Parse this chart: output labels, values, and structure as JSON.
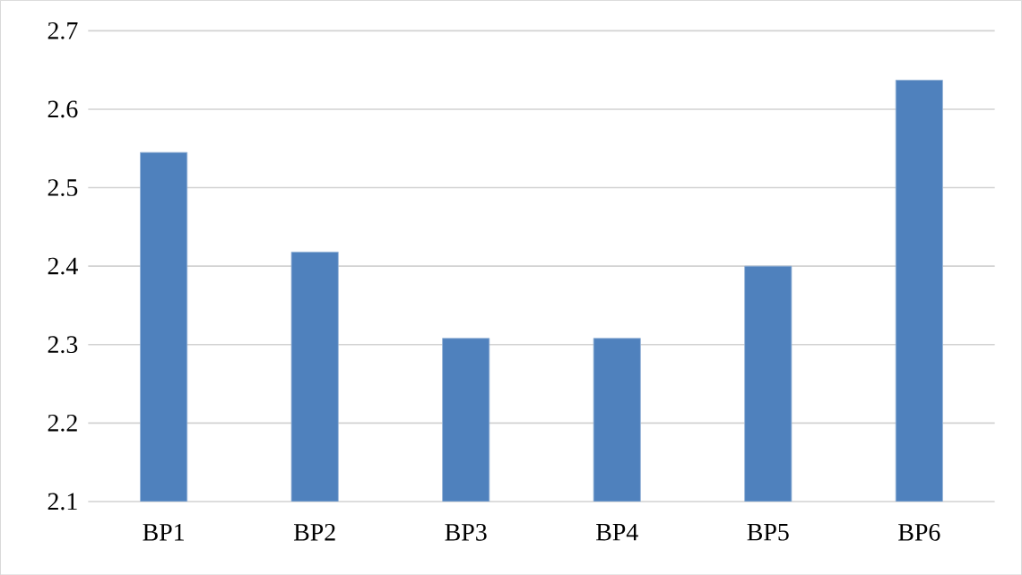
{
  "chart_data": {
    "type": "bar",
    "categories": [
      "BP1",
      "BP2",
      "BP3",
      "BP4",
      "BP5",
      "BP6"
    ],
    "values": [
      2.545,
      2.418,
      2.308,
      2.308,
      2.4,
      2.637
    ],
    "color": "#4f81bd",
    "ylim": [
      2.1,
      2.7
    ],
    "yticks": [
      2.1,
      2.2,
      2.3,
      2.4,
      2.5,
      2.6,
      2.7
    ],
    "grid": "y"
  }
}
